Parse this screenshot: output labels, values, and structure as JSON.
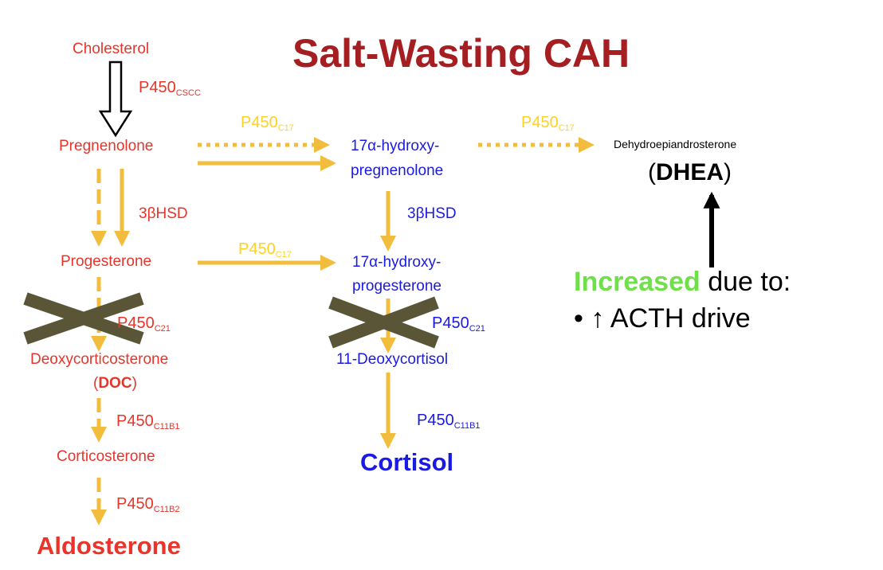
{
  "title": "Salt-Wasting CAH",
  "colors": {
    "title": "#a51e22",
    "left_pathway": "#e8342a",
    "middle_pathway": "#1a1ae6",
    "arrow": "#f2bd3c",
    "enzyme_yellow": "#ffd21f",
    "increased": "#6fe04a",
    "block_x": "#5a5537"
  },
  "nodes": {
    "cholesterol": "Cholesterol",
    "pregnenolone": "Pregnenolone",
    "progesterone": "Progesterone",
    "deoxycorticosterone": "Deoxycorticosterone",
    "doc_open": "(",
    "doc": "DOC",
    "doc_close": ")",
    "corticosterone": "Corticosterone",
    "aldosterone": "Aldosterone",
    "hydroxypreg_line1": "17α-hydroxy-",
    "hydroxypreg_line2": "pregnenolone",
    "hydroxyprog_line1": "17α-hydroxy-",
    "hydroxyprog_line2": "progesterone",
    "deoxycortisol": "11-Deoxycortisol",
    "cortisol": "Cortisol",
    "dhea_full": "Dehydroepiandrosterone",
    "dhea_open": "(",
    "dhea": "DHEA",
    "dhea_close": ")"
  },
  "enzymes": {
    "cscc": {
      "base": "P450",
      "sub": "CSCC"
    },
    "hsd_left": "3βHSD",
    "hsd_middle": "3βHSD",
    "c17_top": {
      "base": "P450",
      "sub": "C17"
    },
    "c17_right": {
      "base": "P450",
      "sub": "C17"
    },
    "c17_mid": {
      "base": "P450",
      "sub": "C17"
    },
    "c21_left": {
      "base": "P450",
      "sub": "C21"
    },
    "c21_middle": {
      "base": "P450",
      "sub": "C21"
    },
    "c11b1_left": {
      "base": "P450",
      "sub": "C11B1"
    },
    "c11b1_middle": {
      "base": "P450",
      "sub": "C11B1"
    },
    "c11b2": {
      "base": "P450",
      "sub": "C11B2"
    }
  },
  "note": {
    "increased": "Increased",
    "due_to": " due to:",
    "bullet": "• ↑ ACTH drive"
  }
}
